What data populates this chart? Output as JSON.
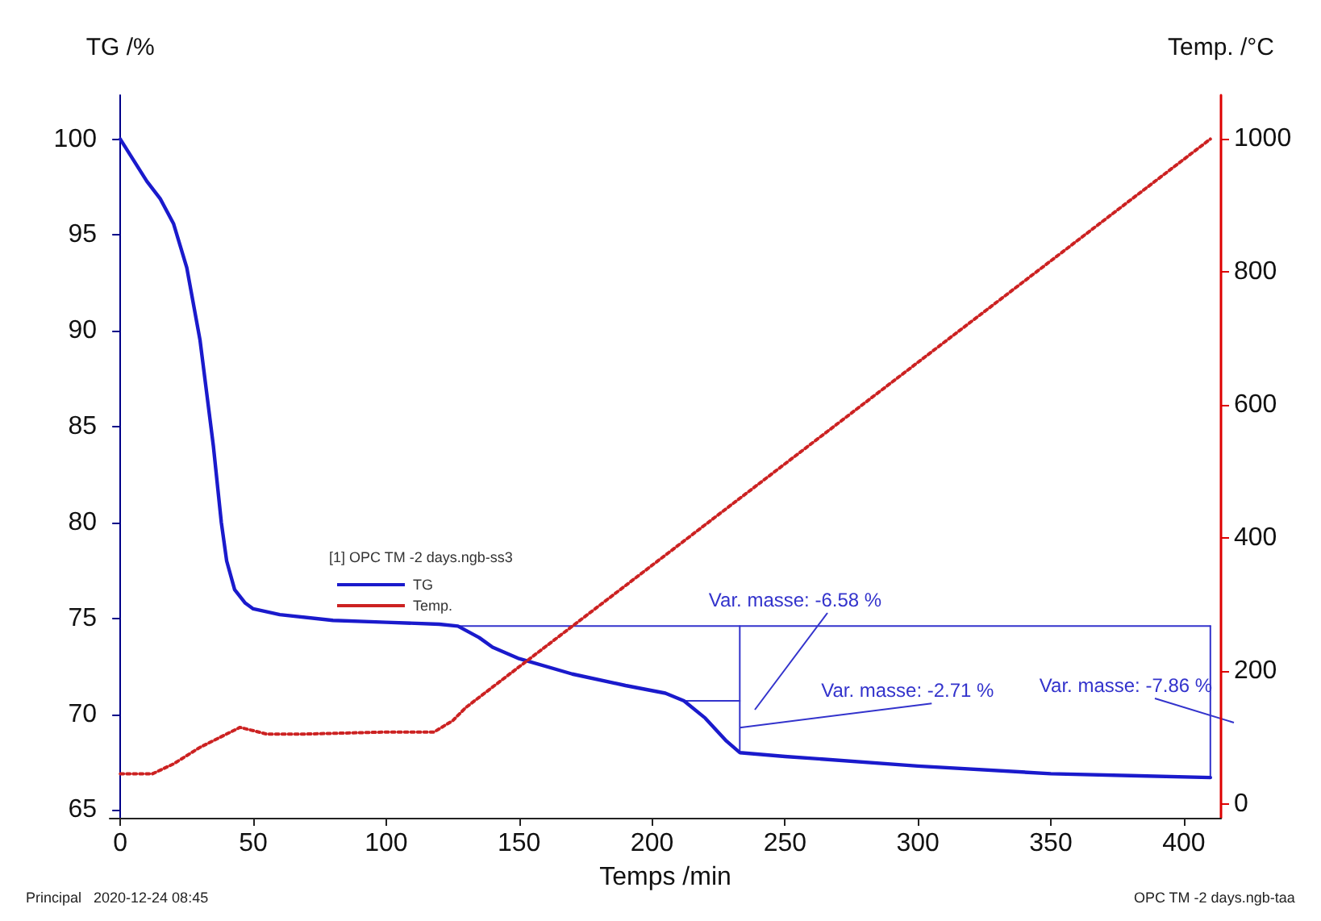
{
  "chart_data": {
    "type": "line",
    "xlabel": "Temps /min",
    "ylabel": "TG /%",
    "y2label": "Temp. /°C",
    "legend_title": "[1] OPC TM -2 days.ngb-ss3",
    "legend": "left",
    "grid": false,
    "xlim": [
      -4,
      414
    ],
    "xticks": [
      0,
      50,
      100,
      150,
      200,
      250,
      300,
      350,
      400
    ],
    "ylim": [
      64.6,
      102.3
    ],
    "yticks": [
      65,
      70,
      75,
      80,
      85,
      90,
      95,
      100
    ],
    "y2lim": [
      -21,
      1066
    ],
    "y2ticks": [
      0,
      200,
      400,
      600,
      800,
      1000
    ],
    "series": [
      {
        "name": "TG",
        "color": "#1a1acc",
        "line_style": "solid",
        "x": [
          0,
          10,
          15,
          20,
          25,
          30,
          35,
          38,
          40,
          43,
          47,
          50,
          60,
          80,
          100,
          120,
          127,
          135,
          140,
          150,
          170,
          190,
          205,
          212,
          220,
          228,
          233,
          250,
          300,
          350,
          380,
          410
        ],
        "values": [
          100,
          97.8,
          96.9,
          95.6,
          93.3,
          89.5,
          84,
          80,
          78,
          76.5,
          75.8,
          75.5,
          75.2,
          74.9,
          74.8,
          74.7,
          74.6,
          74,
          73.5,
          72.9,
          72.1,
          71.5,
          71.1,
          70.7,
          69.8,
          68.6,
          68,
          67.8,
          67.3,
          66.9,
          66.8,
          66.7
        ]
      },
      {
        "name": "Temp.",
        "color": "#cc2222",
        "line_style": "dotted",
        "axis": "y2",
        "x": [
          0,
          12,
          20,
          30,
          45,
          55,
          70,
          100,
          118,
          125,
          130,
          410
        ],
        "values": [
          45,
          45,
          60,
          85,
          115,
          105,
          105,
          108,
          108,
          125,
          145,
          1000
        ]
      },
      {
        "color": "#3333cc",
        "line_style": "solid",
        "x": [
          127,
          410
        ],
        "values": [
          74.6,
          74.6
        ]
      },
      {
        "color": "#3333cc",
        "line_style": "solid",
        "x": [
          212,
          233
        ],
        "values": [
          70.7,
          70.7
        ]
      },
      {
        "color": "#3333cc",
        "line_style": "solid",
        "x": [
          233,
          233
        ],
        "values": [
          74.6,
          68
        ]
      },
      {
        "color": "#3333cc",
        "line_style": "solid",
        "x": [
          410,
          410
        ],
        "values": [
          74.6,
          66.7
        ]
      }
    ],
    "annotations": [
      "Var. masse: -6.58 %",
      {
        "text": "Var. masse: -2.71 %",
        "x": 233,
        "y": 69.3
      },
      "Var. masse: -7.86 %",
      "Principal   2020-12-24 08:45",
      "OPC TM -2 days.ngb-taa"
    ]
  }
}
